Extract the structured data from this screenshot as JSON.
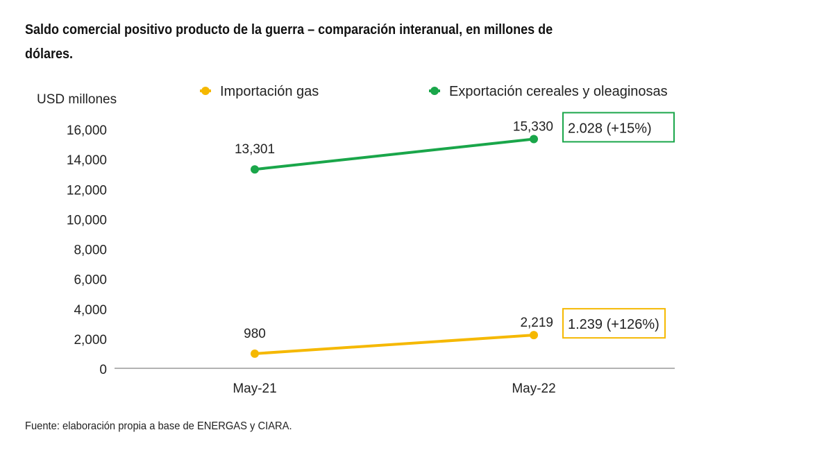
{
  "title": "Saldo comercial positivo producto de la guerra – comparación interanual, en millones de dólares.",
  "source": "Fuente: elaboración propia a base de ENERGAS y CIARA.",
  "chart_data": {
    "type": "line",
    "ylabel": "USD millones",
    "categories": [
      "May-21",
      "May-22"
    ],
    "ylim": [
      0,
      16000
    ],
    "yticks": [
      "0",
      "2,000",
      "4,000",
      "6,000",
      "8,000",
      "10,000",
      "12,000",
      "14,000",
      "16,000"
    ],
    "grid": false,
    "legend_position": "top",
    "series": [
      {
        "name": "Importación gas",
        "color": "#f5b800",
        "values": [
          980,
          2219
        ],
        "labels": [
          "980",
          "2,219"
        ],
        "annotation": "1.239 (+126%)"
      },
      {
        "name": "Exportación cereales y oleaginosas",
        "color": "#1aa64a",
        "values": [
          13301,
          15330
        ],
        "labels": [
          "13,301",
          "15,330"
        ],
        "annotation": "2.028 (+15%)"
      }
    ]
  }
}
